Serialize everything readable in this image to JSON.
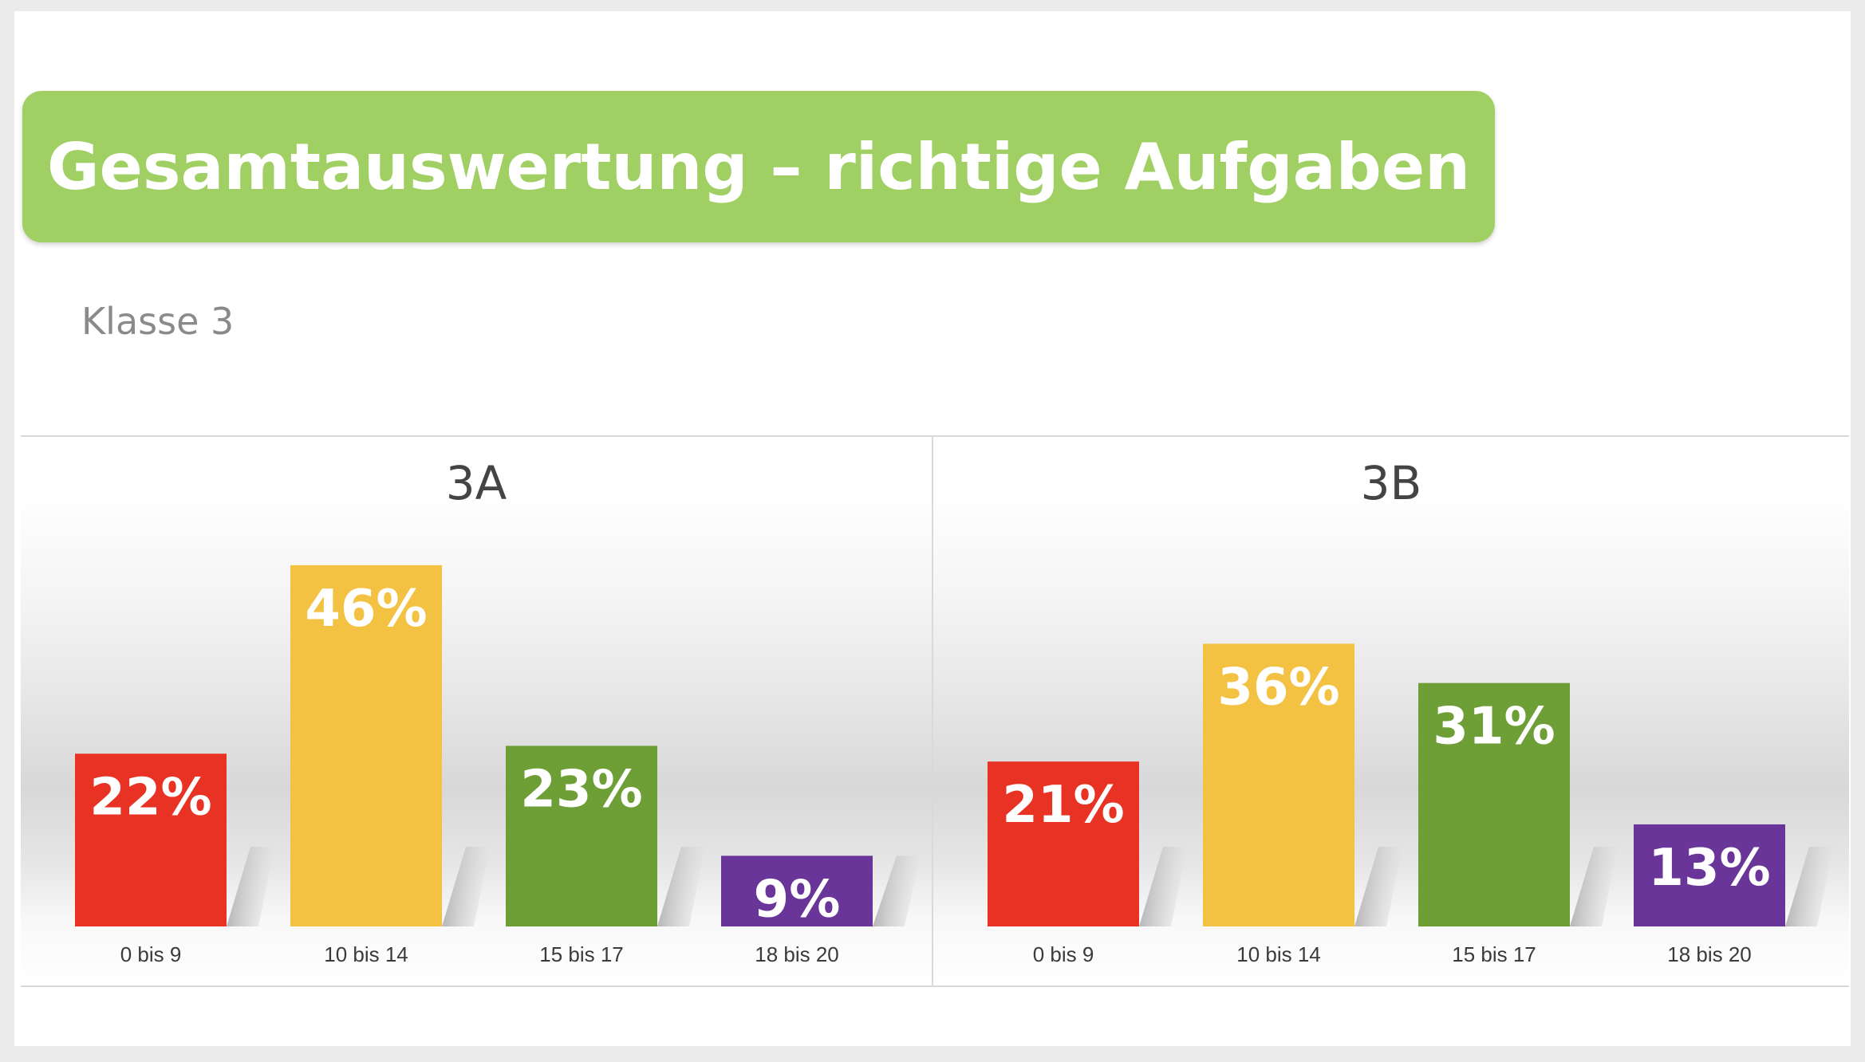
{
  "title": "Gesamtauswertung – richtige Aufgaben",
  "subtitle": "Klasse 3",
  "colors": {
    "banner": "#a0cf63",
    "bar_1": "#e83324",
    "bar_2": "#f4c243",
    "bar_3": "#6e9f37",
    "bar_4": "#6a3599"
  },
  "chart_data": [
    {
      "type": "bar",
      "title": "3A",
      "categories": [
        "0 bis 9",
        "10 bis 14",
        "15 bis 17",
        "18 bis 20"
      ],
      "values": [
        22,
        46,
        23,
        9
      ],
      "data_labels": [
        "22%",
        "46%",
        "23%",
        "9%"
      ],
      "ylim": [
        0,
        50
      ]
    },
    {
      "type": "bar",
      "title": "3B",
      "categories": [
        "0 bis 9",
        "10 bis 14",
        "15 bis 17",
        "18 bis 20"
      ],
      "values": [
        21,
        36,
        31,
        13
      ],
      "data_labels": [
        "21%",
        "36%",
        "31%",
        "13%"
      ],
      "ylim": [
        0,
        50
      ]
    }
  ]
}
